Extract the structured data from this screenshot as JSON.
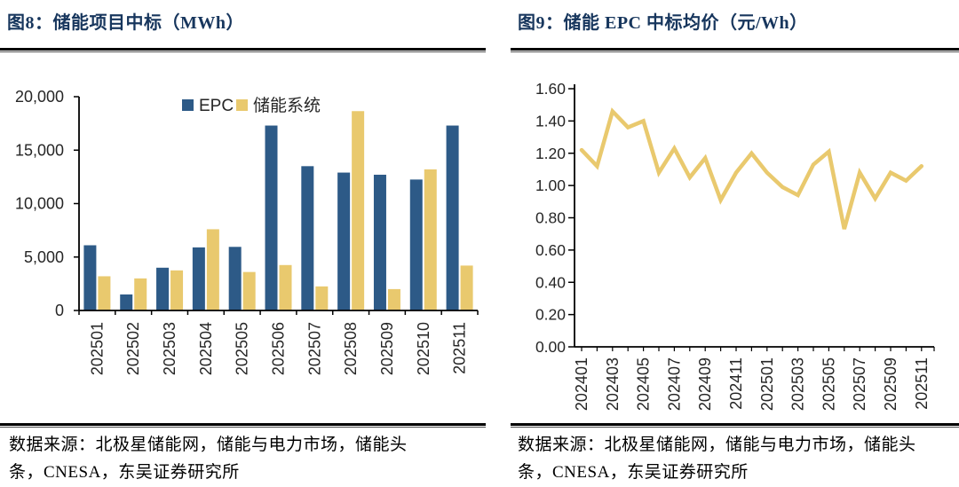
{
  "figures": [
    {
      "title": "图8：储能项目中标（MWh）",
      "source_lines": [
        "数据来源：北极星储能网，储能与电力市场，储能头",
        "条，CNESA，东吴证券研究所"
      ]
    },
    {
      "title": "图9：储能 EPC 中标均价（元/Wh）",
      "source_lines": [
        "数据来源：北极星储能网，储能与电力市场，储能头",
        "条，CNESA，东吴证券研究所"
      ]
    }
  ],
  "chart_data": [
    {
      "type": "bar",
      "title": "储能项目中标（MWh）",
      "categories": [
        "202501",
        "202502",
        "202503",
        "202504",
        "202505",
        "202506",
        "202507",
        "202508",
        "202509",
        "202510",
        "202511"
      ],
      "series": [
        {
          "name": "EPC",
          "color": "#2D5A87",
          "values": [
            6100,
            1500,
            4000,
            5900,
            5950,
            17300,
            13500,
            12900,
            12700,
            12250,
            17300
          ]
        },
        {
          "name": "储能系统",
          "color": "#E9C96E",
          "values": [
            3200,
            3000,
            3750,
            7600,
            3600,
            4250,
            2250,
            18650,
            2000,
            13200,
            4200
          ]
        }
      ],
      "ylim": [
        0,
        20000
      ],
      "yticks": [
        0,
        5000,
        10000,
        15000,
        20000
      ],
      "ytick_labels": [
        "0",
        "5,000",
        "10,000",
        "15,000",
        "20,000"
      ],
      "legend_position": "top-center",
      "grid": false
    },
    {
      "type": "line",
      "title": "储能 EPC 中标均价（元/Wh）",
      "x": [
        "202401",
        "202402",
        "202403",
        "202404",
        "202405",
        "202406",
        "202407",
        "202408",
        "202409",
        "202410",
        "202411",
        "202412",
        "202501",
        "202502",
        "202503",
        "202504",
        "202505",
        "202506",
        "202507",
        "202508",
        "202509",
        "202510",
        "202511"
      ],
      "xtick_label_every": 2,
      "series": [
        {
          "name": "储能 EPC 中标均价",
          "color": "#E9C96E",
          "values": [
            1.22,
            1.12,
            1.46,
            1.36,
            1.4,
            1.08,
            1.23,
            1.05,
            1.17,
            0.91,
            1.08,
            1.2,
            1.08,
            0.99,
            0.94,
            1.13,
            1.21,
            0.73,
            1.08,
            0.92,
            1.08,
            1.03,
            1.12
          ]
        }
      ],
      "ylim": [
        0,
        1.6
      ],
      "ytick_step": 0.2,
      "ytick_labels": [
        "0.00",
        "0.20",
        "0.40",
        "0.60",
        "0.80",
        "1.00",
        "1.20",
        "1.40",
        "1.60"
      ],
      "grid": false
    }
  ],
  "colors": {
    "title_navy": "#17365D",
    "epc_blue": "#2D5A87",
    "storage_gold": "#E9C96E",
    "axis_black": "#000000"
  }
}
